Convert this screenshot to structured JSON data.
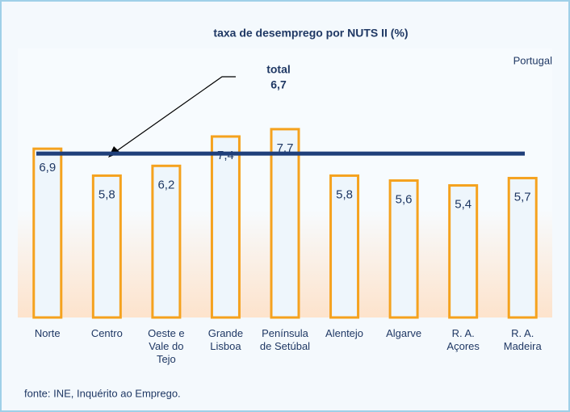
{
  "chart_data": {
    "type": "bar",
    "title": "taxa de desemprego por NUTS II  (%)",
    "subtitle": "Portugal",
    "source": "fonte: INE, Inquérito ao Emprego.",
    "categories": [
      "Norte",
      "Centro",
      "Oeste e Vale do Tejo",
      "Grande Lisboa",
      "Península de Setúbal",
      "Alentejo",
      "Algarve",
      "R. A. Açores",
      "R. A. Madeira"
    ],
    "values": [
      6.9,
      5.8,
      6.2,
      7.4,
      7.7,
      5.8,
      5.6,
      5.4,
      5.7
    ],
    "value_labels": [
      "6,9",
      "5,8",
      "6,2",
      "7,4",
      "7,7",
      "5,8",
      "5,6",
      "5,4",
      "5,7"
    ],
    "color": "#f5a21e",
    "ylim": [
      0,
      11
    ],
    "reference": {
      "text": "total",
      "value": 6.7,
      "label": "6,7",
      "color": "#1f3f7a"
    }
  }
}
